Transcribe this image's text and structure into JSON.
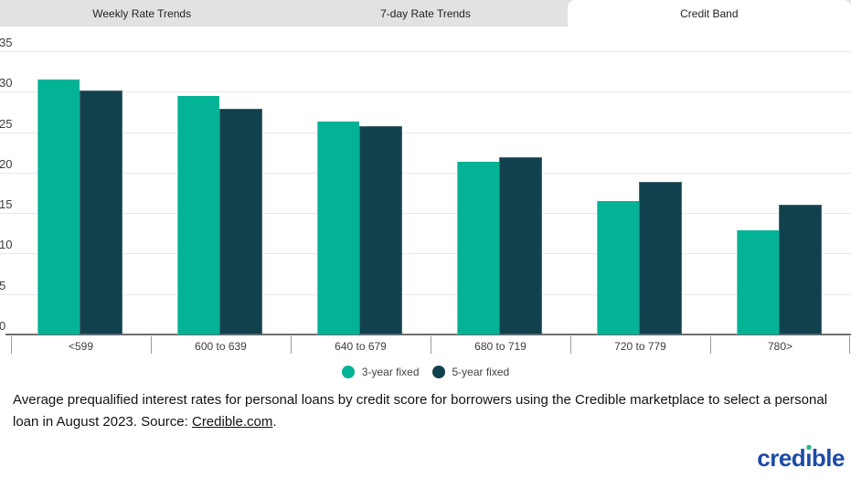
{
  "tabs": [
    {
      "label": "Weekly Rate Trends",
      "active": false
    },
    {
      "label": "7-day Rate Trends",
      "active": false
    },
    {
      "label": "Credit Band",
      "active": true
    }
  ],
  "chart_data": {
    "type": "bar",
    "categories": [
      "<599",
      "600 to 639",
      "640 to 679",
      "680 to 719",
      "720 to 779",
      "780>"
    ],
    "series": [
      {
        "name": "3-year fixed",
        "color": "#04B296",
        "values": [
          31.5,
          29.5,
          26.3,
          21.3,
          16.5,
          12.9
        ]
      },
      {
        "name": "5-year fixed",
        "color": "#12414E",
        "values": [
          30.2,
          27.9,
          25.8,
          21.9,
          18.9,
          16.0
        ]
      }
    ],
    "title": "",
    "xlabel": "",
    "ylabel": "",
    "ylim": [
      0,
      35
    ],
    "ytick_step": 5,
    "grid": true,
    "legend_position": "bottom"
  },
  "caption": {
    "text_before_link": "Average prequalified interest rates for personal loans by credit score for borrowers using the Credible marketplace to select a personal loan in August 2023. Source: ",
    "link_text": "Credible.com",
    "text_after_link": "."
  },
  "logo": {
    "pre": "cred",
    "i_char": "ı",
    "post": "ble",
    "blue": "#1D4BA4",
    "dot_color": "#23BC83"
  },
  "colors": {
    "tabbar_bg": "#e2e2e2",
    "active_tab_bg": "#ffffff",
    "gridline": "#e8e8e8",
    "axis_line": "#6e6e6e",
    "text": "#3d3d3d"
  }
}
